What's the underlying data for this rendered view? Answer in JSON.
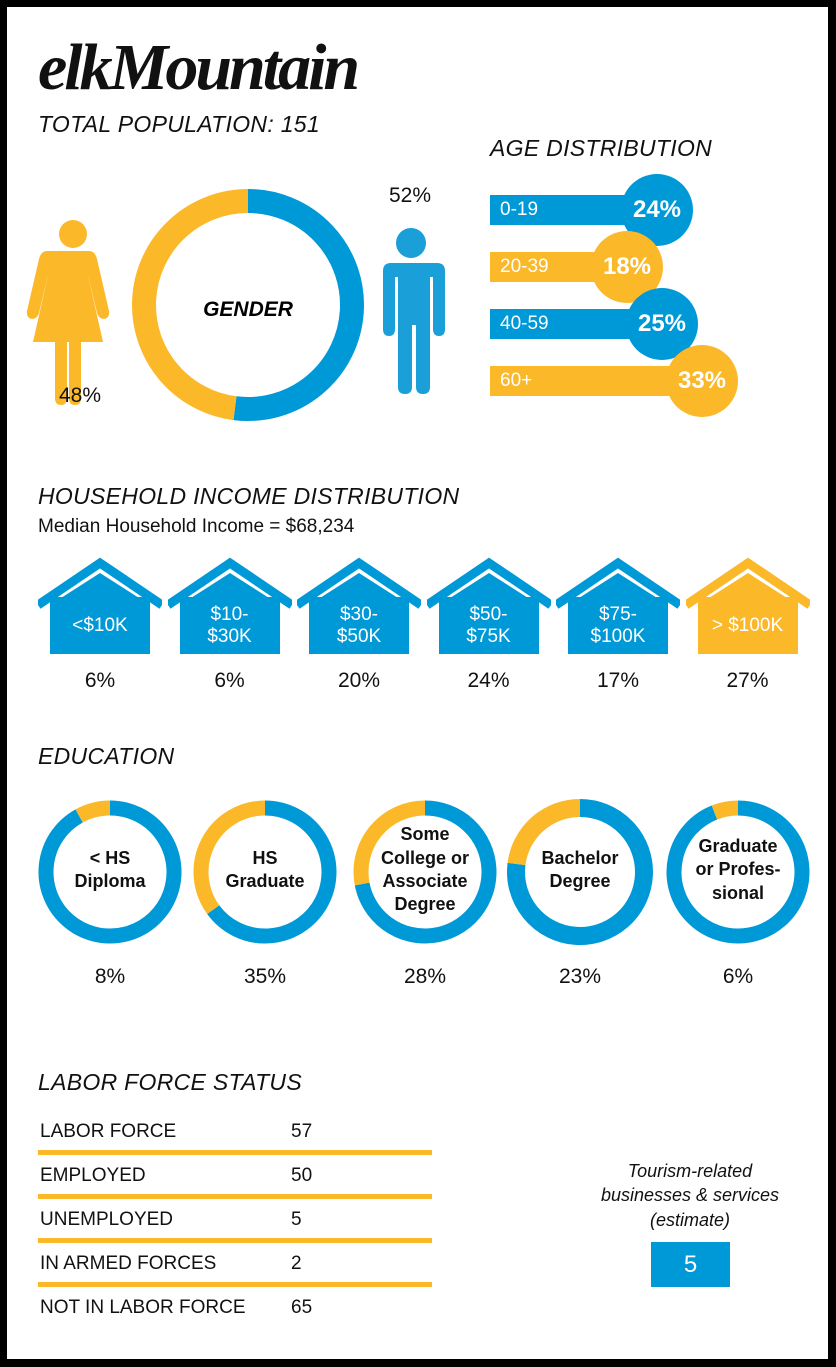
{
  "title": "elkMountain",
  "total_population_label": "TOTAL POPULATION: 151",
  "colors": {
    "blue": "#0099d8",
    "yellow": "#fbb829"
  },
  "gender": {
    "label": "GENDER",
    "female": {
      "icon": "woman-icon",
      "pct": "48%",
      "value": 48
    },
    "male": {
      "icon": "man-icon",
      "pct": "52%",
      "value": 52
    }
  },
  "age": {
    "heading": "AGE DISTRIBUTION",
    "rows": [
      {
        "label": "0-19",
        "pct": "24%",
        "value": 24,
        "color": "#0099d8"
      },
      {
        "label": "20-39",
        "pct": "18%",
        "value": 18,
        "color": "#fbb829"
      },
      {
        "label": "40-59",
        "pct": "25%",
        "value": 25,
        "color": "#0099d8"
      },
      {
        "label": "60+",
        "pct": "33%",
        "value": 33,
        "color": "#fbb829"
      }
    ]
  },
  "income": {
    "heading": "HOUSEHOLD INCOME DISTRIBUTION",
    "median": "Median Household Income = $68,234",
    "houses": [
      {
        "lines": [
          "<$10K"
        ],
        "pct": "6%",
        "value": 6,
        "color": "#0099d8"
      },
      {
        "lines": [
          "$10-",
          "$30K"
        ],
        "pct": "6%",
        "value": 6,
        "color": "#0099d8"
      },
      {
        "lines": [
          "$30-",
          "$50K"
        ],
        "pct": "20%",
        "value": 20,
        "color": "#0099d8"
      },
      {
        "lines": [
          "$50-",
          "$75K"
        ],
        "pct": "24%",
        "value": 24,
        "color": "#0099d8"
      },
      {
        "lines": [
          "$75-",
          "$100K"
        ],
        "pct": "17%",
        "value": 17,
        "color": "#0099d8"
      },
      {
        "lines": [
          "> $100K"
        ],
        "pct": "27%",
        "value": 27,
        "color": "#fbb829"
      }
    ]
  },
  "education": {
    "heading": "EDUCATION",
    "items": [
      {
        "lines": [
          "< HS",
          "Diploma"
        ],
        "pct": "8%",
        "value": 8
      },
      {
        "lines": [
          "HS",
          "Graduate"
        ],
        "pct": "35%",
        "value": 35
      },
      {
        "lines": [
          "Some",
          "College or",
          "Associate",
          "Degree"
        ],
        "pct": "28%",
        "value": 28
      },
      {
        "lines": [
          "Bachelor",
          "Degree"
        ],
        "pct": "23%",
        "value": 23
      },
      {
        "lines": [
          "Graduate",
          "or Profes-",
          "sional"
        ],
        "pct": "6%",
        "value": 6
      }
    ]
  },
  "labor": {
    "heading": "LABOR FORCE STATUS",
    "rows": [
      {
        "label": "LABOR FORCE",
        "value": "57"
      },
      {
        "label": "EMPLOYED",
        "value": "50"
      },
      {
        "label": "UNEMPLOYED",
        "value": "5"
      },
      {
        "label": "IN ARMED FORCES",
        "value": "2"
      },
      {
        "label": "NOT IN LABOR FORCE",
        "value": "65"
      }
    ]
  },
  "tourism": {
    "lines": [
      "Tourism-related",
      "businesses & services",
      "(estimate)"
    ],
    "value": "5"
  },
  "chart_data": [
    {
      "type": "pie",
      "title": "GENDER",
      "categories": [
        "Female",
        "Male"
      ],
      "values": [
        48,
        52
      ],
      "colors": [
        "#fbb829",
        "#0099d8"
      ]
    },
    {
      "type": "bar",
      "title": "AGE DISTRIBUTION",
      "categories": [
        "0-19",
        "20-39",
        "40-59",
        "60+"
      ],
      "values": [
        24,
        18,
        25,
        33
      ]
    },
    {
      "type": "bar",
      "title": "HOUSEHOLD INCOME DISTRIBUTION",
      "categories": [
        "<$10K",
        "$10-$30K",
        "$30-$50K",
        "$50-$75K",
        "$75-$100K",
        "> $100K"
      ],
      "values": [
        6,
        6,
        20,
        24,
        17,
        27
      ]
    },
    {
      "type": "pie",
      "title": "EDUCATION",
      "categories": [
        "< HS Diploma",
        "HS Graduate",
        "Some College or Associate Degree",
        "Bachelor Degree",
        "Graduate or Professional"
      ],
      "values": [
        8,
        35,
        28,
        23,
        6
      ]
    },
    {
      "type": "table",
      "title": "LABOR FORCE STATUS",
      "categories": [
        "LABOR FORCE",
        "EMPLOYED",
        "UNEMPLOYED",
        "IN ARMED FORCES",
        "NOT IN LABOR FORCE"
      ],
      "values": [
        57,
        50,
        5,
        2,
        65
      ]
    }
  ]
}
